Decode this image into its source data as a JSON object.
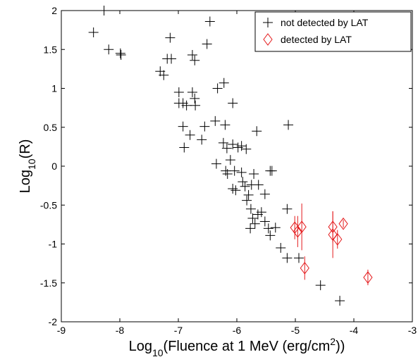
{
  "chart_data": {
    "type": "scatter",
    "xlabel": [
      {
        "text": "Log"
      },
      {
        "text": "10",
        "sub": true
      },
      {
        "text": "(Fluence at 1 MeV (erg/cm"
      },
      {
        "text": "2",
        "sup": true
      },
      {
        "text": "))"
      }
    ],
    "ylabel": [
      {
        "text": "Log"
      },
      {
        "text": "10",
        "sub": true
      },
      {
        "text": "(R)"
      }
    ],
    "xlim": [
      -9,
      -3
    ],
    "ylim": [
      -2,
      2
    ],
    "xticks": [
      -9,
      -8,
      -7,
      -6,
      -5,
      -4,
      -3
    ],
    "yticks": [
      -2,
      -1.5,
      -1,
      -0.5,
      0,
      0.5,
      1,
      1.5,
      2
    ],
    "legend": "upper right",
    "series": [
      {
        "name": "not detected by LAT",
        "color": "#000000",
        "marker": "plus",
        "x": [
          -8.27,
          -8.45,
          -8.19,
          -7.99,
          -7.98,
          -7.14,
          -7.19,
          -7.12,
          -7.31,
          -7.25,
          -6.76,
          -6.72,
          -6.46,
          -6.51,
          -6.99,
          -6.76,
          -6.99,
          -6.92,
          -6.86,
          -6.72,
          -6.71,
          -6.33,
          -6.22,
          -6.07,
          -6.8,
          -6.6,
          -6.92,
          -6.55,
          -6.37,
          -6.2,
          -5.66,
          -5.12,
          -6.9,
          -6.23,
          -6.17,
          -6.07,
          -5.98,
          -5.92,
          -5.84,
          -6.35,
          -6.11,
          -6.19,
          -6.16,
          -6.04,
          -5.92,
          -6.07,
          -6.02,
          -5.9,
          -5.86,
          -5.8,
          -5.75,
          -5.83,
          -5.71,
          -5.63,
          -5.52,
          -5.43,
          -5.4,
          -5.58,
          -5.76,
          -5.73,
          -5.69,
          -5.64,
          -5.77,
          -5.52,
          -5.46,
          -5.43,
          -5.34,
          -5.14,
          -5.25,
          -5.14,
          -4.94,
          -4.57,
          -4.24
        ],
        "y": [
          2.0,
          1.72,
          1.5,
          1.45,
          1.43,
          1.65,
          1.38,
          1.38,
          1.22,
          1.17,
          1.43,
          1.36,
          1.86,
          1.57,
          0.95,
          0.95,
          0.81,
          0.81,
          0.78,
          0.87,
          0.78,
          1.0,
          1.07,
          0.81,
          0.4,
          0.34,
          0.51,
          0.51,
          0.58,
          0.53,
          0.45,
          0.53,
          0.24,
          0.3,
          0.23,
          0.28,
          0.24,
          0.26,
          0.22,
          0.03,
          0.08,
          -0.06,
          -0.1,
          -0.06,
          -0.08,
          -0.29,
          -0.31,
          -0.2,
          -0.26,
          -0.37,
          -0.24,
          -0.44,
          -0.1,
          -0.24,
          -0.36,
          -0.06,
          -0.06,
          -0.59,
          -0.55,
          -0.67,
          -0.74,
          -0.62,
          -0.8,
          -0.71,
          -0.8,
          -0.89,
          -0.79,
          -0.55,
          -1.05,
          -1.18,
          -1.18,
          -1.53,
          -1.73
        ]
      },
      {
        "name": "detected by LAT",
        "color": "#e41a1c",
        "marker": "diamond",
        "x": [
          -5.01,
          -4.96,
          -4.89,
          -4.84,
          -4.36,
          -4.36,
          -4.28,
          -4.18,
          -3.76
        ],
        "y": [
          -0.79,
          -0.84,
          -0.78,
          -1.31,
          -0.78,
          -0.88,
          -0.94,
          -0.74,
          -1.43
        ],
        "yerr": [
          0.15,
          0.2,
          0.3,
          0.15,
          0.2,
          0.3,
          0.12,
          0.05,
          0.1
        ]
      }
    ]
  }
}
